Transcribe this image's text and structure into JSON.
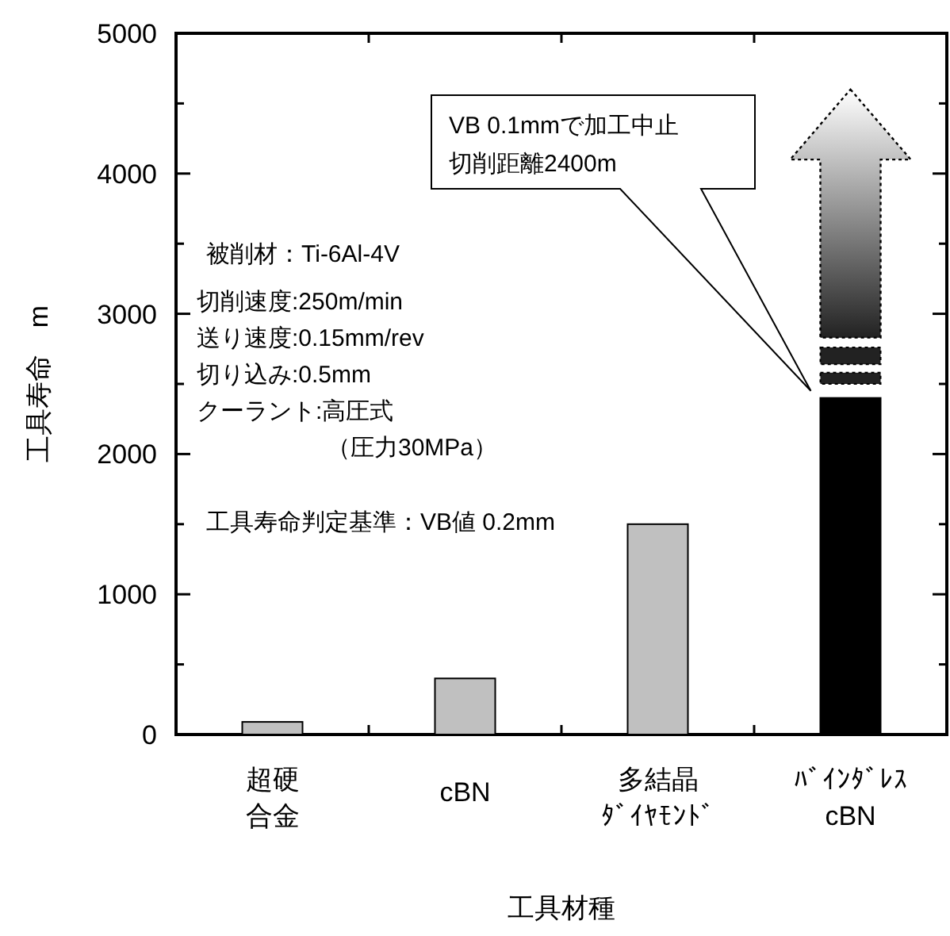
{
  "chart_data": {
    "type": "bar",
    "xlabel": "工具材種",
    "ylabel": "工具寿命　m",
    "categories": [
      "超硬合金",
      "cBN",
      "多結晶ﾀﾞｲﾔﾓﾝﾄﾞ",
      "ﾊﾞｲﾝﾀﾞﾚｽcBN"
    ],
    "values": [
      90,
      400,
      1500,
      2400
    ],
    "colors": [
      "#c0c0c0",
      "#c0c0c0",
      "#c0c0c0",
      "#000000"
    ],
    "ylim": [
      0,
      5000
    ],
    "yticks": [
      0,
      {
        "value": 500,
        "label": null
      },
      1000,
      {
        "value": 1500,
        "label": null
      },
      2000,
      {
        "value": 2500,
        "label": null
      },
      3000,
      {
        "value": 3500,
        "label": null
      },
      4000,
      {
        "value": 4500,
        "label": null
      },
      5000
    ],
    "annotations": [
      "被削材：Ti-6Al-4V",
      "切削速度:250m/min",
      "送り速度:0.15mm/rev",
      "切り込み:0.5mm",
      "クーラント:高圧式",
      "（圧力30MPa）",
      "工具寿命判定基準：VB値 0.2mm",
      "VB 0.1mmで加工中止",
      "切削距離2400m"
    ]
  }
}
